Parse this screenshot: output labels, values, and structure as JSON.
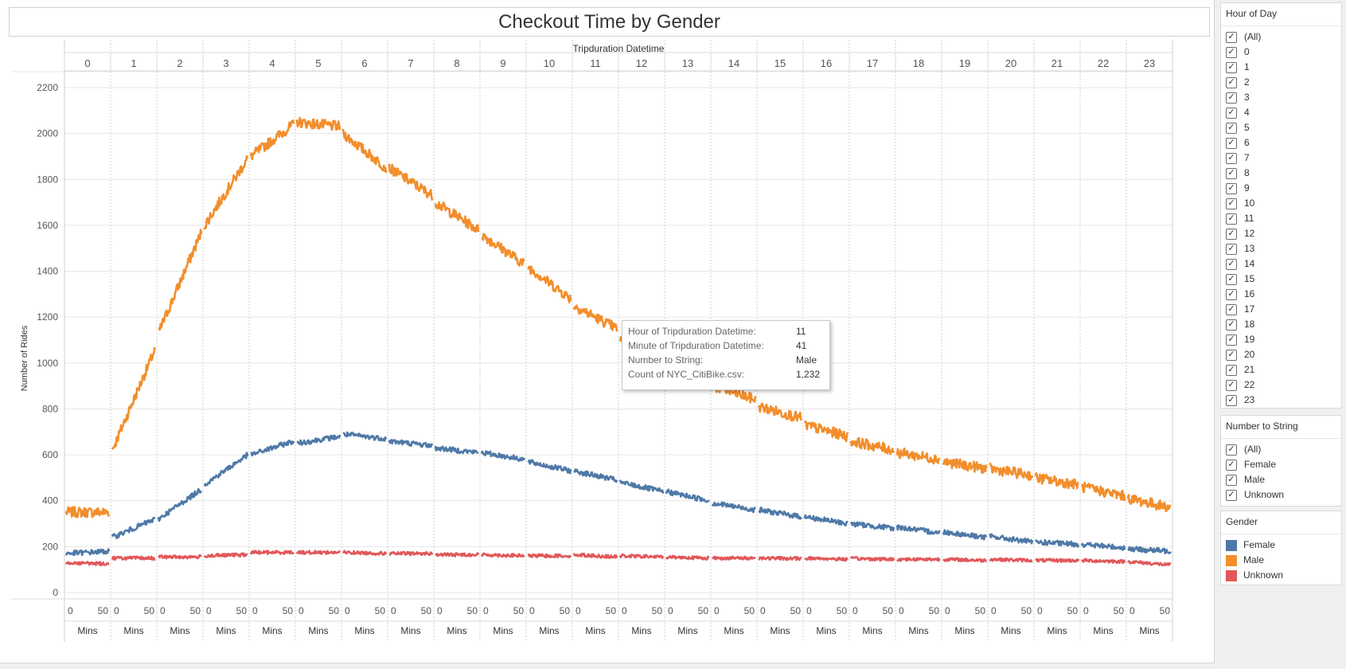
{
  "title": "Checkout Time by Gender",
  "colors": {
    "female": "#4e79a7",
    "male": "#f28e2b",
    "unknown": "#e15759",
    "grid": "#e6e6e6"
  },
  "filters": {
    "hour_of_day": {
      "title": "Hour of Day",
      "items": [
        "(All)",
        "0",
        "1",
        "2",
        "3",
        "4",
        "5",
        "6",
        "7",
        "8",
        "9",
        "10",
        "11",
        "12",
        "13",
        "14",
        "15",
        "16",
        "17",
        "18",
        "19",
        "20",
        "21",
        "22",
        "23"
      ]
    },
    "number_to_string": {
      "title": "Number to String",
      "items": [
        "(All)",
        "Female",
        "Male",
        "Unknown"
      ]
    }
  },
  "legend": {
    "title": "Gender",
    "items": [
      {
        "label": "Female",
        "color": "#4e79a7"
      },
      {
        "label": "Male",
        "color": "#f28e2b"
      },
      {
        "label": "Unknown",
        "color": "#e15759"
      }
    ]
  },
  "tooltip": {
    "rows": [
      {
        "key": "Hour of Tripduration Datetime:",
        "value": "11"
      },
      {
        "key": "Minute of Tripduration Datetime:",
        "value": "41"
      },
      {
        "key": "Number to String:",
        "value": "Male"
      },
      {
        "key": "Count of NYC_CitiBike.csv:",
        "value": "1,232"
      }
    ]
  },
  "chart_data": {
    "type": "line",
    "title": "Checkout Time by Gender",
    "top_header": "Tripduration Datetime",
    "ylabel": "Number of Rides",
    "xlabel_per_pane": "Mins",
    "x_tick_labels": [
      "0",
      "50"
    ],
    "categories": [
      "0",
      "1",
      "2",
      "3",
      "4",
      "5",
      "6",
      "7",
      "8",
      "9",
      "10",
      "11",
      "12",
      "13",
      "14",
      "15",
      "16",
      "17",
      "18",
      "19",
      "20",
      "21",
      "22",
      "23"
    ],
    "ylim": [
      0,
      2200
    ],
    "yticks": [
      0,
      200,
      400,
      600,
      800,
      1000,
      1200,
      1400,
      1600,
      1800,
      2000,
      2200
    ],
    "grid": true,
    "series": [
      {
        "name": "Male",
        "color": "#f28e2b",
        "start": [
          350,
          620,
          1130,
          1600,
          1900,
          2050,
          2000,
          1850,
          1700,
          1560,
          1420,
          1250,
          1100,
          1010,
          900,
          810,
          730,
          660,
          610,
          570,
          540,
          500,
          460,
          410
        ],
        "end": [
          350,
          1060,
          1570,
          1890,
          2040,
          2030,
          1850,
          1730,
          1580,
          1430,
          1280,
          1150,
          1030,
          930,
          840,
          760,
          680,
          620,
          580,
          540,
          510,
          470,
          420,
          370
        ]
      },
      {
        "name": "Female",
        "color": "#4e79a7",
        "start": [
          170,
          240,
          320,
          470,
          600,
          650,
          690,
          660,
          630,
          610,
          570,
          530,
          480,
          440,
          390,
          360,
          330,
          300,
          285,
          265,
          245,
          220,
          210,
          190
        ],
        "end": [
          180,
          320,
          450,
          600,
          660,
          680,
          670,
          640,
          610,
          580,
          530,
          490,
          440,
          400,
          360,
          330,
          300,
          280,
          260,
          240,
          220,
          210,
          195,
          180
        ]
      },
      {
        "name": "Unknown",
        "color": "#e15759",
        "start": [
          130,
          150,
          155,
          160,
          175,
          175,
          175,
          170,
          165,
          165,
          160,
          165,
          160,
          155,
          150,
          150,
          150,
          148,
          145,
          145,
          145,
          140,
          140,
          135
        ],
        "end": [
          125,
          150,
          155,
          165,
          175,
          175,
          170,
          170,
          165,
          160,
          160,
          155,
          155,
          150,
          150,
          148,
          145,
          145,
          145,
          140,
          140,
          140,
          135,
          120
        ]
      }
    ]
  }
}
